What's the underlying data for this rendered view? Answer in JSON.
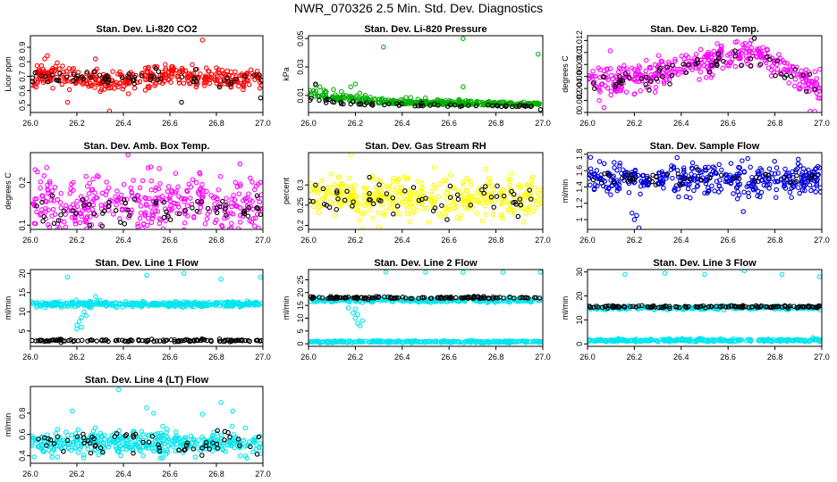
{
  "page_title": "NWR_070326  2.5 Min. Std. Dev. Diagnostics",
  "chart_data": [
    {
      "type": "scatter",
      "title": "Stan. Dev. Li-820 CO2",
      "xlabel": "",
      "ylabel": "Licor ppm",
      "xlim": [
        26.0,
        27.0
      ],
      "ylim": [
        0.45,
        0.98
      ],
      "xticks": [
        26.0,
        26.2,
        26.4,
        26.6,
        26.8,
        27.0
      ],
      "yticks": [
        0.5,
        0.6,
        0.7,
        0.8,
        0.9
      ],
      "series": [
        {
          "color": "#ff0000",
          "gen": {
            "mode": "band",
            "base": 0.69,
            "amp": 0.06,
            "noise": 0.055,
            "n": 380,
            "seed": 11
          },
          "x": [
            26.74,
            26.34,
            26.28,
            26.16
          ],
          "y": [
            0.95,
            0.46,
            0.82,
            0.52
          ]
        },
        {
          "color": "#000000",
          "gen": {
            "mode": "band",
            "base": 0.69,
            "amp": 0.05,
            "noise": 0.04,
            "n": 60,
            "seed": 12
          },
          "x": [
            26.65,
            26.99
          ],
          "y": [
            0.52,
            0.55
          ]
        }
      ],
      "grid": false
    },
    {
      "type": "scatter",
      "title": "Stan. Dev. Li-820 Pressure",
      "xlabel": "",
      "ylabel": "kPa",
      "xlim": [
        26.0,
        27.0
      ],
      "ylim": [
        -0.002,
        0.052
      ],
      "xticks": [
        26.0,
        26.2,
        26.4,
        26.6,
        26.8,
        27.0
      ],
      "yticks": [
        0.01,
        0.03,
        0.05
      ],
      "series": [
        {
          "color": "#00b000",
          "gen": {
            "mode": "decay",
            "base": 0.003,
            "peak": 0.007,
            "noise": 0.0025,
            "n": 380,
            "seed": 21
          },
          "x": [
            26.32,
            26.66,
            26.98,
            26.66,
            26.2,
            26.18,
            26.03
          ],
          "y": [
            0.044,
            0.05,
            0.039,
            0.016,
            0.018,
            0.016,
            0.017
          ]
        },
        {
          "color": "#000000",
          "gen": {
            "mode": "decay",
            "base": 0.002,
            "peak": 0.004,
            "noise": 0.0015,
            "n": 60,
            "seed": 22
          },
          "x": [
            26.03,
            26.99
          ],
          "y": [
            0.018,
            0.0
          ]
        }
      ],
      "grid": false
    },
    {
      "type": "scatter",
      "title": "Stan. Dev. Li-820 Temp.",
      "xlabel": "",
      "ylabel": "degrees C",
      "xlim": [
        26.0,
        27.0
      ],
      "ylim": [
        0.0,
        0.0128
      ],
      "xticks": [
        26.0,
        26.2,
        26.4,
        26.6,
        26.8,
        27.0
      ],
      "yticks": [
        0.0,
        0.002,
        0.004,
        0.006,
        0.008,
        0.01,
        0.012
      ],
      "series": [
        {
          "color": "#ff00ff",
          "gen": {
            "mode": "arch",
            "base": 0.009,
            "amp": 0.0035,
            "noise": 0.0012,
            "n": 380,
            "seed": 31
          },
          "x": [
            26.97,
            26.95,
            26.05
          ],
          "y": [
            0.0002,
            0.0002,
            0.002
          ]
        },
        {
          "color": "#000000",
          "gen": {
            "mode": "arch",
            "base": 0.009,
            "amp": 0.003,
            "noise": 0.001,
            "n": 60,
            "seed": 32
          },
          "x": [],
          "y": []
        }
      ],
      "grid": false
    },
    {
      "type": "scatter",
      "title": "Stan. Dev. Amb. Box Temp.",
      "xlabel": "",
      "ylabel": "degrees C",
      "xlim": [
        26.0,
        27.0
      ],
      "ylim": [
        0.09,
        0.27
      ],
      "xticks": [
        26.0,
        26.2,
        26.4,
        26.6,
        26.8,
        27.0
      ],
      "yticks": [
        0.1,
        0.2
      ],
      "series": [
        {
          "color": "#ff00ff",
          "gen": {
            "mode": "flat",
            "base": 0.145,
            "noise": 0.035,
            "n": 380,
            "seed": 41
          },
          "x": [
            26.42,
            26.02,
            26.03,
            26.07,
            26.73
          ],
          "y": [
            0.265,
            0.23,
            0.225,
            0.235,
            0.22
          ]
        },
        {
          "color": "#000000",
          "gen": {
            "mode": "flat",
            "base": 0.135,
            "noise": 0.018,
            "n": 60,
            "seed": 42
          },
          "x": [],
          "y": []
        }
      ],
      "grid": false
    },
    {
      "type": "scatter",
      "title": "Stan. Dev. Gas Stream RH",
      "xlabel": "",
      "ylabel": "percent",
      "xlim": [
        26.0,
        27.0
      ],
      "ylim": [
        0.19,
        0.38
      ],
      "xticks": [
        26.0,
        26.2,
        26.4,
        26.6,
        26.8,
        27.0
      ],
      "yticks": [
        0.2,
        0.25,
        0.3
      ],
      "series": [
        {
          "color": "#ffff00",
          "gen": {
            "mode": "flat",
            "base": 0.27,
            "noise": 0.025,
            "n": 400,
            "seed": 51
          },
          "x": [
            26.18,
            26.3
          ],
          "y": [
            0.375,
            0.195
          ]
        },
        {
          "color": "#000000",
          "gen": {
            "mode": "flat",
            "base": 0.265,
            "noise": 0.02,
            "n": 60,
            "seed": 52
          },
          "x": [],
          "y": []
        }
      ],
      "grid": false
    },
    {
      "type": "scatter",
      "title": "Stan. Dev. Sample Flow",
      "xlabel": "",
      "ylabel": "ml/min",
      "xlim": [
        26.0,
        27.0
      ],
      "ylim": [
        0.88,
        1.82
      ],
      "xticks": [
        26.0,
        26.2,
        26.4,
        26.6,
        26.8,
        27.0
      ],
      "yticks": [
        1.0,
        1.2,
        1.4,
        1.6,
        1.8
      ],
      "series": [
        {
          "color": "#0000dd",
          "gen": {
            "mode": "flat",
            "base": 1.5,
            "noise": 0.1,
            "n": 400,
            "seed": 61
          },
          "x": [
            26.22,
            26.2,
            26.21,
            26.19
          ],
          "y": [
            0.9,
            1.0,
            1.05,
            1.08
          ]
        },
        {
          "color": "#000000",
          "gen": {
            "mode": "flat",
            "base": 1.5,
            "noise": 0.05,
            "n": 40,
            "seed": 62
          },
          "x": [],
          "y": []
        }
      ],
      "grid": false
    },
    {
      "type": "scatter",
      "title": "Stan. Dev. Line 1 Flow",
      "xlabel": "",
      "ylabel": "ml/min",
      "xlim": [
        26.0,
        27.0
      ],
      "ylim": [
        1.0,
        21.0
      ],
      "xticks": [
        26.0,
        26.2,
        26.4,
        26.6,
        26.8,
        27.0
      ],
      "yticks": [
        5,
        10,
        15,
        20
      ],
      "series": [
        {
          "color": "#00e5ee",
          "gen": {
            "mode": "line",
            "base": 12.0,
            "noise": 0.35,
            "n": 380,
            "seed": 71
          },
          "x": [
            26.2,
            26.21,
            26.22,
            26.23,
            26.2,
            26.22,
            26.24,
            26.26,
            26.28,
            26.3,
            26.16,
            26.5,
            26.66,
            26.82,
            26.99
          ],
          "y": [
            6.5,
            7.5,
            8.5,
            10.0,
            5.5,
            6.0,
            9.0,
            12.5,
            14.0,
            13.0,
            19.0,
            19.5,
            20.0,
            18.5,
            19.0
          ]
        },
        {
          "color": "#000000",
          "gen": {
            "mode": "line",
            "base": 2.5,
            "noise": 0.15,
            "n": 130,
            "seed": 72
          },
          "x": [],
          "y": []
        }
      ],
      "grid": false
    },
    {
      "type": "scatter",
      "title": "Stan. Dev. Line 2 Flow",
      "xlabel": "",
      "ylabel": "ml/min",
      "xlim": [
        26.0,
        27.0
      ],
      "ylim": [
        -1.0,
        29.0
      ],
      "xticks": [
        26.0,
        26.2,
        26.4,
        26.6,
        26.8,
        27.0
      ],
      "yticks": [
        0,
        5,
        10,
        15,
        20,
        25
      ],
      "series": [
        {
          "color": "#00e5ee",
          "gen": {
            "mode": "line",
            "base": 17.0,
            "noise": 0.4,
            "n": 300,
            "seed": 81
          },
          "x": [
            26.17,
            26.19,
            26.2,
            26.21,
            26.22,
            26.23,
            26.21,
            26.2,
            26.33,
            26.5,
            26.66,
            26.83,
            26.99
          ],
          "y": [
            14.0,
            12.0,
            10.0,
            8.0,
            7.0,
            9.0,
            11.5,
            13.5,
            28.0,
            28.0,
            28.0,
            28.0,
            28.0
          ]
        },
        {
          "color": "#00e5ee",
          "gen": {
            "mode": "line",
            "base": 0.8,
            "noise": 0.2,
            "n": 300,
            "seed": 82
          },
          "x": [],
          "y": []
        },
        {
          "color": "#000000",
          "gen": {
            "mode": "line",
            "base": 18.0,
            "noise": 0.2,
            "n": 130,
            "seed": 83
          },
          "x": [],
          "y": []
        }
      ],
      "grid": false
    },
    {
      "type": "scatter",
      "title": "Stan. Dev. Line 3 Flow",
      "xlabel": "",
      "ylabel": "ml/min",
      "xlim": [
        26.0,
        27.0
      ],
      "ylim": [
        -1.0,
        31.0
      ],
      "xticks": [
        26.0,
        26.2,
        26.4,
        26.6,
        26.8,
        27.0
      ],
      "yticks": [
        0,
        10,
        20,
        30
      ],
      "series": [
        {
          "color": "#00e5ee",
          "gen": {
            "mode": "line",
            "base": 15.0,
            "noise": 0.4,
            "n": 250,
            "seed": 91
          },
          "x": [
            26.16,
            26.33,
            26.5,
            26.67,
            26.83,
            26.99
          ],
          "y": [
            29.0,
            29.5,
            29.0,
            30.5,
            29.0,
            28.0
          ]
        },
        {
          "color": "#00e5ee",
          "gen": {
            "mode": "line",
            "base": 1.5,
            "noise": 0.3,
            "n": 300,
            "seed": 92
          },
          "x": [],
          "y": []
        },
        {
          "color": "#000000",
          "gen": {
            "mode": "line",
            "base": 15.5,
            "noise": 0.25,
            "n": 130,
            "seed": 93
          },
          "x": [],
          "y": []
        }
      ],
      "grid": false
    },
    {
      "type": "scatter",
      "title": "Stan. Dev. Line 4 (LT) Flow",
      "xlabel": "",
      "ylabel": "ml/min",
      "xlim": [
        26.0,
        27.0
      ],
      "ylim": [
        0.33,
        1.05
      ],
      "xticks": [
        26.0,
        26.2,
        26.4,
        26.6,
        26.8,
        27.0
      ],
      "yticks": [
        0.4,
        0.6,
        0.8
      ],
      "series": [
        {
          "color": "#00e5ee",
          "gen": {
            "mode": "flat",
            "base": 0.52,
            "noise": 0.055,
            "n": 400,
            "seed": 101
          },
          "x": [
            26.38,
            26.18,
            26.5,
            26.82,
            26.53,
            26.74,
            26.87
          ],
          "y": [
            1.02,
            0.82,
            0.85,
            0.9,
            0.8,
            0.79,
            0.82
          ]
        },
        {
          "color": "#000000",
          "gen": {
            "mode": "flat",
            "base": 0.52,
            "noise": 0.05,
            "n": 60,
            "seed": 102
          },
          "x": [],
          "y": []
        }
      ],
      "grid": false
    }
  ]
}
